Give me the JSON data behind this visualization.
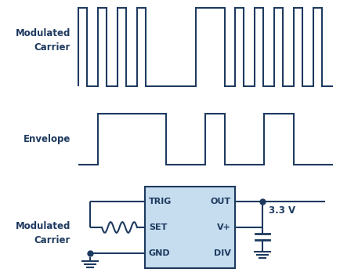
{
  "bg_color": "#ffffff",
  "line_color": "#1e3a5f",
  "box_fill": "#c5ddef",
  "box_edge": "#1e3a5f",
  "text_color": "#1e3a5f",
  "label_modulated": "Modulated\nCarrier",
  "label_envelope": "Envelope",
  "label_33v": "3.3 V",
  "pin_labels_left": [
    "TRIG",
    "SET",
    "GND"
  ],
  "pin_labels_right": [
    "OUT",
    "V+",
    "DIV"
  ],
  "figsize": [
    4.35,
    3.52
  ],
  "dpi": 100
}
